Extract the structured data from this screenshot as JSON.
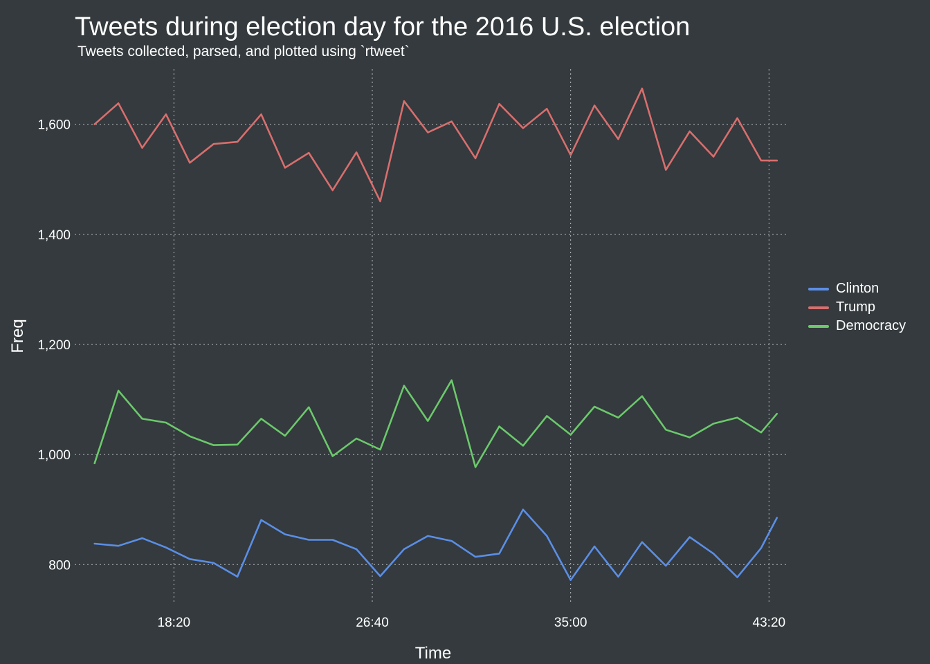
{
  "chart_data": {
    "type": "line",
    "title": "Tweets during election day for the 2016 U.S. election",
    "subtitle": "Tweets collected, parsed, and plotted using `rtweet`",
    "xlabel": "Time",
    "ylabel": "Freq",
    "x_tick_labels": [
      "18:20",
      "26:40",
      "35:00",
      "43:20"
    ],
    "x_tick_seconds": [
      1100,
      1600,
      2100,
      2600
    ],
    "y_ticks": [
      800,
      1000,
      1200,
      1400,
      1600
    ],
    "y_tick_labels": [
      "800",
      "1,000",
      "1,200",
      "1,400",
      "1,600"
    ],
    "ylim": [
      730,
      1700
    ],
    "xlim_seconds": [
      850,
      2650
    ],
    "grid": true,
    "grid_style": "dotted",
    "legend_position": "right",
    "x_seconds": [
      900,
      960,
      1020,
      1080,
      1140,
      1200,
      1260,
      1320,
      1380,
      1440,
      1500,
      1560,
      1620,
      1680,
      1740,
      1800,
      1860,
      1920,
      1980,
      2040,
      2100,
      2160,
      2220,
      2280,
      2340,
      2400,
      2460,
      2520,
      2580,
      2620
    ],
    "series": [
      {
        "name": "Clinton",
        "color": "#5b8ee6",
        "values": [
          838,
          834,
          848,
          831,
          810,
          803,
          778,
          881,
          855,
          845,
          845,
          828,
          779,
          828,
          852,
          843,
          814,
          820,
          900,
          852,
          772,
          833,
          778,
          841,
          798,
          850,
          820,
          777,
          830,
          885
        ]
      },
      {
        "name": "Trump",
        "color": "#d96e6e",
        "values": [
          1600,
          1638,
          1557,
          1618,
          1530,
          1564,
          1568,
          1618,
          1521,
          1548,
          1480,
          1549,
          1460,
          1642,
          1585,
          1605,
          1538,
          1637,
          1593,
          1628,
          1544,
          1634,
          1573,
          1665,
          1517,
          1587,
          1541,
          1611,
          1534,
          1534
        ]
      },
      {
        "name": "Democracy",
        "color": "#6cc96c",
        "values": [
          984,
          1116,
          1065,
          1058,
          1033,
          1017,
          1018,
          1065,
          1034,
          1086,
          997,
          1029,
          1009,
          1125,
          1061,
          1135,
          977,
          1051,
          1016,
          1070,
          1036,
          1087,
          1067,
          1106,
          1045,
          1031,
          1056,
          1067,
          1040,
          1074
        ]
      }
    ]
  }
}
